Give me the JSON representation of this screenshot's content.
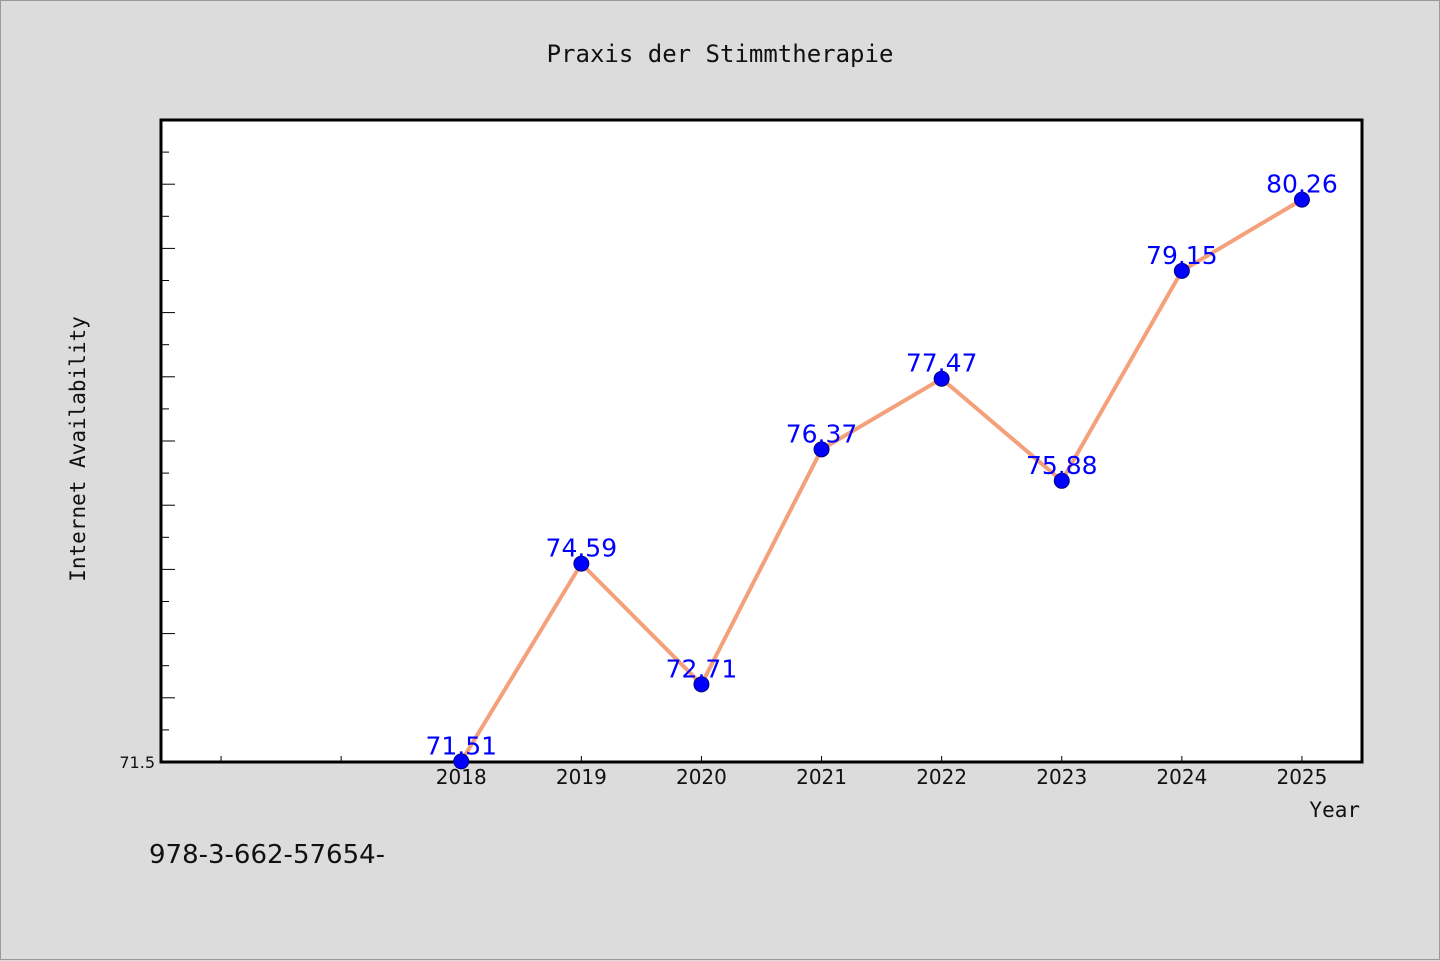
{
  "chart_data": {
    "type": "line",
    "title": "Praxis der Stimmtherapie",
    "xlabel": "Year",
    "ylabel": "Internet Availability",
    "categories": [
      "2018",
      "2019",
      "2020",
      "2021",
      "2022",
      "2023",
      "2024",
      "2025"
    ],
    "series": [
      {
        "values": [
          71.51,
          74.59,
          72.71,
          76.37,
          77.47,
          75.88,
          79.15,
          80.26
        ],
        "data_labels": [
          "71.51",
          "74.59",
          "72.71",
          "76.37",
          "77.47",
          "75.88",
          "79.15",
          "80.26"
        ],
        "line_color": "#f4a07a",
        "marker_color": "#0000ff"
      }
    ],
    "y_tick_labels": [
      "71.5"
    ],
    "ylim": [
      71.5,
      81.5
    ],
    "xlim": [
      2015.5,
      2025.5
    ],
    "grid": false,
    "legend": "none"
  },
  "footnote": "978-3-662-57654-"
}
